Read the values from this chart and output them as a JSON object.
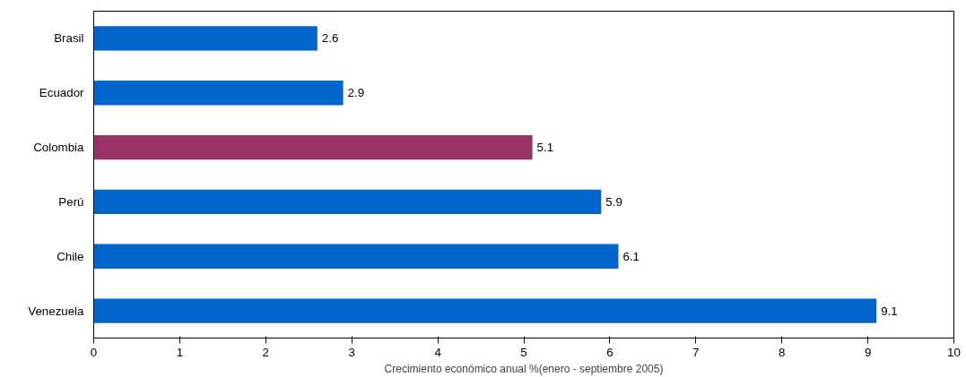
{
  "chart_data": {
    "type": "bar",
    "orientation": "horizontal",
    "xlabel": "Crecimiento económico anual %(enero - septiembre 2005)",
    "categories": [
      "Brasil",
      "Ecuador",
      "Colombia",
      "Perú",
      "Chile",
      "Venezuela"
    ],
    "values": [
      2.6,
      2.9,
      5.1,
      5.9,
      6.1,
      9.1
    ],
    "colors": [
      "#0066cc",
      "#0066cc",
      "#993366",
      "#0066cc",
      "#0066cc",
      "#0066cc"
    ],
    "xlim": [
      0,
      10
    ],
    "xticks": [
      0,
      1,
      2,
      3,
      4,
      5,
      6,
      7,
      8,
      9,
      10
    ],
    "grid": false,
    "data_labels": true
  }
}
